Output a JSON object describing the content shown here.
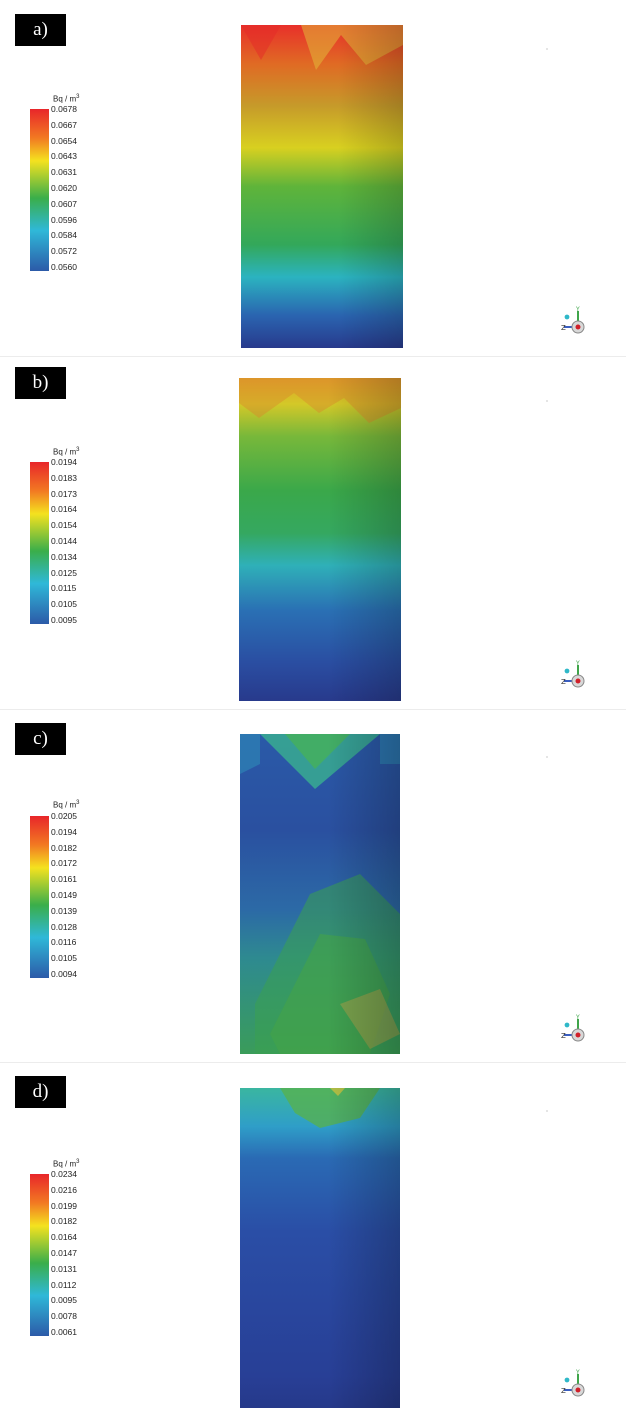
{
  "unit_label": "Bq / m",
  "unit_exp": "3",
  "axis_z": "Z",
  "axis_y": "Y",
  "panels": [
    {
      "label": "a)",
      "ticks": [
        "0.0678",
        "0.0667",
        "0.0654",
        "0.0643",
        "0.0631",
        "0.0620",
        "0.0607",
        "0.0596",
        "0.0584",
        "0.0572",
        "0.0560"
      ]
    },
    {
      "label": "b)",
      "ticks": [
        "0.0194",
        "0.0183",
        "0.0173",
        "0.0164",
        "0.0154",
        "0.0144",
        "0.0134",
        "0.0125",
        "0.0115",
        "0.0105",
        "0.0095"
      ]
    },
    {
      "label": "c)",
      "ticks": [
        "0.0205",
        "0.0194",
        "0.0182",
        "0.0172",
        "0.0161",
        "0.0149",
        "0.0139",
        "0.0128",
        "0.0116",
        "0.0105",
        "0.0094"
      ]
    },
    {
      "label": "d)",
      "ticks": [
        "0.0234",
        "0.0216",
        "0.0199",
        "0.0182",
        "0.0164",
        "0.0147",
        "0.0131",
        "0.0112",
        "0.0095",
        "0.0078",
        "0.0061"
      ]
    }
  ],
  "colors": {
    "red": "#e8262a",
    "orange": "#f27a22",
    "yellow": "#f4e21f",
    "green": "#3aae4a",
    "cyan": "#2fb8d8",
    "blue": "#2c5aa8",
    "navy": "#283a8c"
  }
}
